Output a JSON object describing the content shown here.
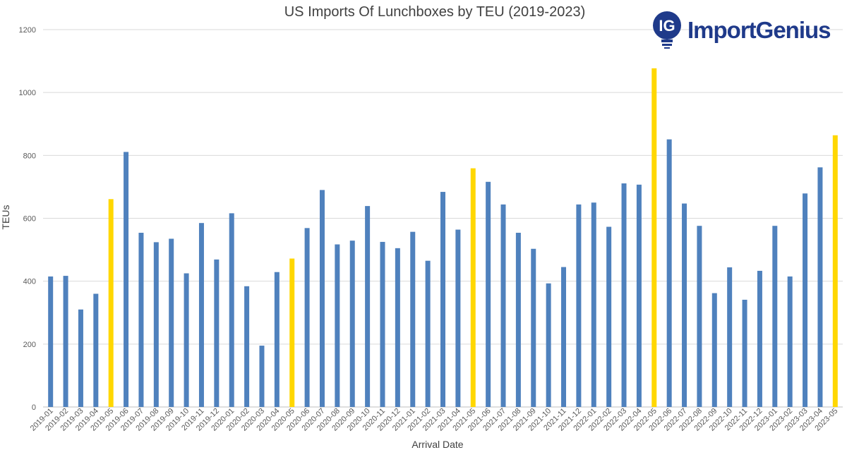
{
  "logo": {
    "text": "ImportGenius",
    "badge": "IG",
    "color": "#1f3a8a"
  },
  "chart_data": {
    "type": "bar",
    "title": "US Imports Of Lunchboxes by TEU (2019-2023)",
    "xlabel": "Arrival Date",
    "ylabel": "TEUs",
    "ylim": [
      0,
      1200
    ],
    "yticks": [
      0,
      200,
      400,
      600,
      800,
      1000,
      1200
    ],
    "grid": true,
    "colors": {
      "default": "#4f81bd",
      "highlight": "#ffd700",
      "grid": "#d9d9d9",
      "axis": "#bfbfbf",
      "text": "#595959"
    },
    "highlighted_categories": [
      "2019-05",
      "2020-05",
      "2021-05",
      "2022-05",
      "2023-05"
    ],
    "categories": [
      "2019-01",
      "2019-02",
      "2019-03",
      "2019-04",
      "2019-05",
      "2019-06",
      "2019-07",
      "2019-08",
      "2019-09",
      "2019-10",
      "2019-11",
      "2019-12",
      "2020-01",
      "2020-02",
      "2020-03",
      "2020-04",
      "2020-05",
      "2020-06",
      "2020-07",
      "2020-08",
      "2020-09",
      "2020-10",
      "2020-11",
      "2020-12",
      "2021-01",
      "2021-02",
      "2021-03",
      "2021-04",
      "2021-05",
      "2021-06",
      "2021-07",
      "2021-08",
      "2021-09",
      "2021-10",
      "2021-11",
      "2021-12",
      "2022-01",
      "2022-02",
      "2022-03",
      "2022-04",
      "2022-05",
      "2022-06",
      "2022-07",
      "2022-08",
      "2022-09",
      "2022-10",
      "2022-11",
      "2022-12",
      "2023-01",
      "2023-02",
      "2023-03",
      "2023-04",
      "2023-05"
    ],
    "values": [
      415,
      417,
      310,
      360,
      661,
      811,
      554,
      524,
      535,
      425,
      585,
      469,
      616,
      384,
      195,
      429,
      472,
      569,
      690,
      517,
      529,
      639,
      525,
      505,
      557,
      465,
      684,
      564,
      759,
      716,
      644,
      554,
      503,
      393,
      445,
      644,
      650,
      573,
      711,
      707,
      1077,
      851,
      647,
      576,
      362,
      444,
      341,
      433,
      576,
      415,
      679,
      762,
      864
    ]
  }
}
